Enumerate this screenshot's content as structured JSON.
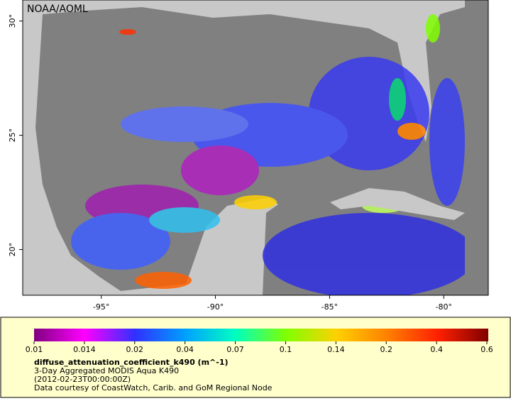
{
  "map": {
    "credit": "NOAA/AOML",
    "xlim": [
      -98.44,
      -78.05
    ],
    "ylim": [
      18.0,
      30.92
    ],
    "xticks": [
      {
        "value": -95,
        "label": "-95°"
      },
      {
        "value": -90,
        "label": "-90°"
      },
      {
        "value": -85,
        "label": "-85°"
      },
      {
        "value": -80,
        "label": "-80°"
      }
    ],
    "yticks": [
      {
        "value": 20,
        "label": "20°"
      },
      {
        "value": 25,
        "label": "25°"
      },
      {
        "value": 30,
        "label": "30°"
      }
    ]
  },
  "legend": {
    "ticks": [
      "0.01",
      "0.014",
      "0.02",
      "0.04",
      "0.07",
      "0.1",
      "0.14",
      "0.2",
      "0.4",
      "0.6"
    ],
    "variable": "diffuse_attenuation_coefficient_k490 (m^-1)",
    "lines": [
      "3-Day Aggregated MODIS Aqua K490",
      "(2012-02-23T00:00:00Z)",
      "Data courtesy of CoastWatch, Carib. and GoM Regional Node"
    ]
  }
}
